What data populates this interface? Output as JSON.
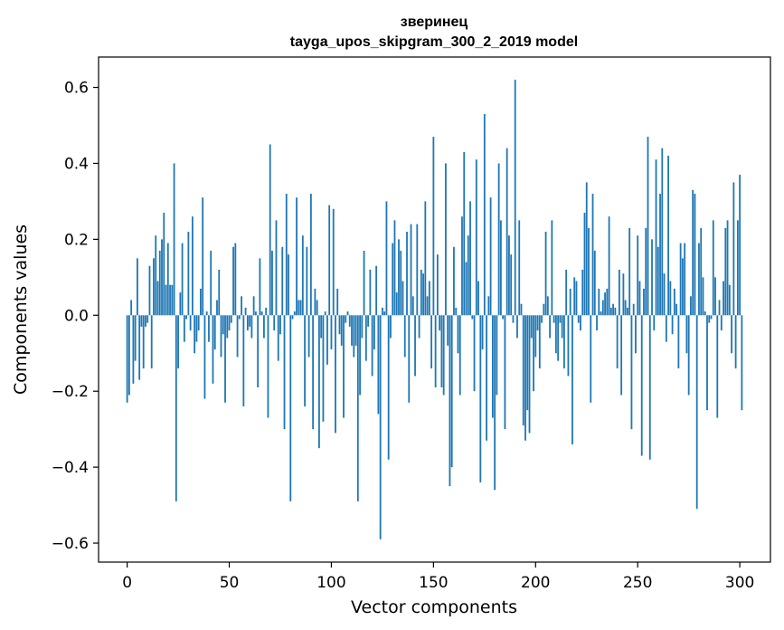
{
  "chart_data": {
    "type": "bar",
    "title": "зверинец",
    "subtitle": "tayga_upos_skipgram_300_2_2019 model",
    "xlabel": "Vector components",
    "ylabel": "Components values",
    "xlim": [
      -14,
      315
    ],
    "ylim": [
      -0.65,
      0.68
    ],
    "xticks": [
      0,
      50,
      100,
      150,
      200,
      250,
      300
    ],
    "xtick_labels": [
      "0",
      "50",
      "100",
      "150",
      "200",
      "250",
      "300"
    ],
    "yticks": [
      -0.6,
      -0.4,
      -0.2,
      0.0,
      0.2,
      0.4,
      0.6
    ],
    "ytick_labels": [
      "−0.6",
      "−0.4",
      "−0.2",
      "0.0",
      "0.2",
      "0.4",
      "0.6"
    ],
    "bar_color": "#1f77b4",
    "values": [
      -0.23,
      -0.21,
      0.04,
      -0.18,
      -0.12,
      0.15,
      -0.17,
      -0.03,
      -0.14,
      -0.03,
      -0.02,
      0.13,
      -0.14,
      0.15,
      0.21,
      0.09,
      0.17,
      0.2,
      0.27,
      0.08,
      0.19,
      0.08,
      0.08,
      0.4,
      -0.49,
      -0.14,
      0.06,
      0.19,
      -0.07,
      -0.01,
      0.22,
      -0.04,
      0.26,
      -0.1,
      -0.07,
      -0.04,
      0.07,
      0.31,
      -0.22,
      0.01,
      -0.07,
      0.17,
      -0.18,
      -0.09,
      0.04,
      0.12,
      -0.11,
      -0.05,
      -0.23,
      -0.06,
      -0.04,
      -0.02,
      0.18,
      0.19,
      -0.11,
      -0.01,
      0.05,
      -0.24,
      0.02,
      -0.04,
      -0.03,
      -0.06,
      0.05,
      0.01,
      -0.19,
      0.15,
      0.01,
      -0.06,
      0.02,
      -0.27,
      0.45,
      0.17,
      -0.04,
      0.25,
      -0.12,
      -0.05,
      0.18,
      -0.3,
      0.32,
      0.16,
      -0.49,
      -0.01,
      0.01,
      0.31,
      0.04,
      0.04,
      0.21,
      -0.24,
      0.18,
      -0.11,
      0.32,
      -0.3,
      0.07,
      0.04,
      -0.35,
      -0.06,
      -0.28,
      0.01,
      -0.13,
      0.29,
      -0.09,
      0.28,
      -0.31,
      0.07,
      -0.05,
      -0.08,
      -0.27,
      -0.02,
      0.01,
      -0.03,
      -0.08,
      -0.11,
      -0.08,
      -0.49,
      -0.21,
      -0.06,
      0.17,
      -0.12,
      -0.03,
      0.12,
      -0.16,
      -0.09,
      0.13,
      -0.26,
      -0.59,
      0.02,
      0.01,
      0.3,
      -0.38,
      -0.06,
      0.19,
      0.25,
      0.06,
      0.2,
      0.17,
      0.09,
      -0.11,
      0.22,
      -0.23,
      0.24,
      0.05,
      -0.16,
      0.24,
      -0.06,
      0.12,
      0.11,
      0.3,
      0.05,
      0.09,
      -0.14,
      0.47,
      -0.19,
      0.16,
      -0.04,
      -0.19,
      -0.21,
      0.4,
      -0.08,
      -0.45,
      -0.4,
      0.18,
      0.02,
      -0.1,
      -0.21,
      0.26,
      0.43,
      0.14,
      0.21,
      0.3,
      -0.01,
      -0.2,
      0.41,
      0.09,
      -0.44,
      -0.09,
      0.53,
      -0.33,
      0.05,
      0.31,
      -0.27,
      -0.46,
      -0.21,
      0.4,
      0.25,
      -0.01,
      -0.3,
      0.44,
      0.21,
      0.16,
      -0.02,
      0.62,
      -0.06,
      0.25,
      0.03,
      -0.29,
      -0.33,
      -0.25,
      -0.31,
      -0.06,
      -0.2,
      -0.11,
      -0.04,
      -0.14,
      -0.02,
      0.03,
      0.22,
      0.05,
      -0.06,
      0.25,
      -0.02,
      -0.1,
      -0.12,
      -0.02,
      -0.06,
      -0.14,
      0.12,
      -0.16,
      0.07,
      -0.34,
      0.1,
      0.09,
      -0.02,
      -0.04,
      0.12,
      0.27,
      0.35,
      0.23,
      -0.23,
      0.32,
      0.17,
      -0.04,
      0.07,
      0.01,
      0.04,
      0.06,
      0.07,
      0.26,
      0.02,
      0.03,
      0.02,
      -0.14,
      0.12,
      -0.21,
      0.11,
      0.04,
      0.02,
      0.23,
      -0.3,
      0.03,
      -0.1,
      0.21,
      0.09,
      -0.37,
      0.07,
      0.23,
      0.47,
      -0.38,
      0.2,
      -0.04,
      0.41,
      0.18,
      0.32,
      0.44,
      0.11,
      -0.07,
      0.42,
      0.09,
      -0.05,
      0.07,
      0.03,
      -0.14,
      0.19,
      0.15,
      0.19,
      -0.1,
      -0.21,
      0.05,
      0.33,
      0.32,
      -0.51,
      0.19,
      0.23,
      0.1,
      0.01,
      -0.25,
      -0.02,
      -0.01,
      0.25,
      0.1,
      -0.27,
      0.04,
      -0.04,
      0.09,
      0.23,
      0.25,
      0.08,
      -0.1,
      0.35,
      -0.14,
      0.25,
      0.37,
      -0.25
    ]
  }
}
